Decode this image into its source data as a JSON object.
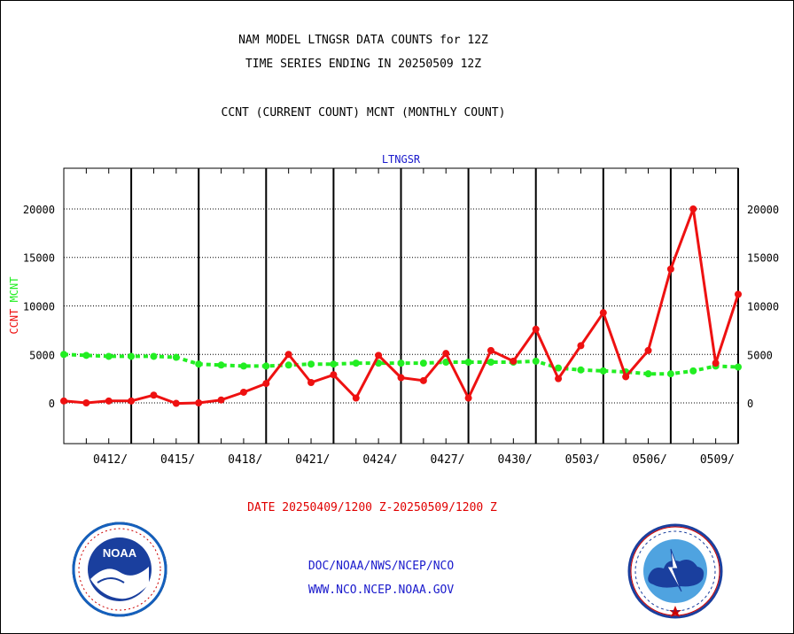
{
  "footer": {
    "agency_path": "DOC/NOAA/NWS/NCEP/NCO",
    "website": "WWW.NCO.NCEP.NOAA.GOV"
  },
  "chart_data": {
    "type": "line",
    "title_lines": [
      "NAM MODEL LTNGSR DATA COUNTS for 12Z",
      "TIME SERIES ENDING IN 20250509 12Z"
    ],
    "subtitle": "CCNT (CURRENT COUNT) MCNT (MONTHLY COUNT)",
    "plot_title": "LTNGSR",
    "xlabel": "DATE 20250409/1200 Z-20250509/1200 Z",
    "ylabel_left": [
      "CCNT",
      "MCNT"
    ],
    "ylim": [
      -4200,
      24200
    ],
    "yticks": [
      0,
      5000,
      10000,
      15000,
      20000
    ],
    "xlim": [
      0,
      30
    ],
    "x_ticks": [
      {
        "label": "0412/",
        "x": 3
      },
      {
        "label": "0415/",
        "x": 6
      },
      {
        "label": "0418/",
        "x": 9
      },
      {
        "label": "0421/",
        "x": 12
      },
      {
        "label": "0424/",
        "x": 15
      },
      {
        "label": "0427/",
        "x": 18
      },
      {
        "label": "0430/",
        "x": 21
      },
      {
        "label": "0503/",
        "x": 24
      },
      {
        "label": "0506/",
        "x": 27
      },
      {
        "label": "0509/",
        "x": 30
      }
    ],
    "grid": true,
    "colors": {
      "ccnt": "#ee1111",
      "mcnt": "#22ee22",
      "axis_title": "#1a1acc"
    },
    "series": [
      {
        "name": "CCNT",
        "color": "#ee1111",
        "x": [
          0,
          1,
          2,
          3,
          4,
          5,
          6,
          7,
          8,
          9,
          10,
          11,
          12,
          13,
          14,
          15,
          16,
          17,
          18,
          19,
          20,
          21,
          22,
          23,
          24,
          25,
          26,
          27,
          28,
          29,
          30
        ],
        "values": [
          200,
          0,
          200,
          200,
          800,
          -50,
          0,
          300,
          1100,
          2000,
          5000,
          2100,
          2900,
          500,
          4900,
          2600,
          2300,
          5100,
          500,
          5400,
          4300,
          7600,
          2500,
          5900,
          9300,
          2700,
          5400,
          13800,
          20000,
          4100,
          11200
        ]
      },
      {
        "name": "MCNT",
        "color": "#22ee22",
        "x": [
          0,
          1,
          2,
          3,
          4,
          5,
          6,
          7,
          8,
          9,
          10,
          11,
          12,
          13,
          14,
          15,
          16,
          17,
          18,
          19,
          20,
          21,
          22,
          23,
          24,
          25,
          26,
          27,
          28,
          29,
          30
        ],
        "values": [
          5000,
          4900,
          4800,
          4800,
          4800,
          4700,
          4000,
          3900,
          3800,
          3800,
          3900,
          4000,
          4000,
          4100,
          4100,
          4100,
          4100,
          4200,
          4200,
          4200,
          4200,
          4300,
          3600,
          3400,
          3300,
          3200,
          3000,
          3000,
          3300,
          3800,
          3700
        ]
      }
    ]
  }
}
